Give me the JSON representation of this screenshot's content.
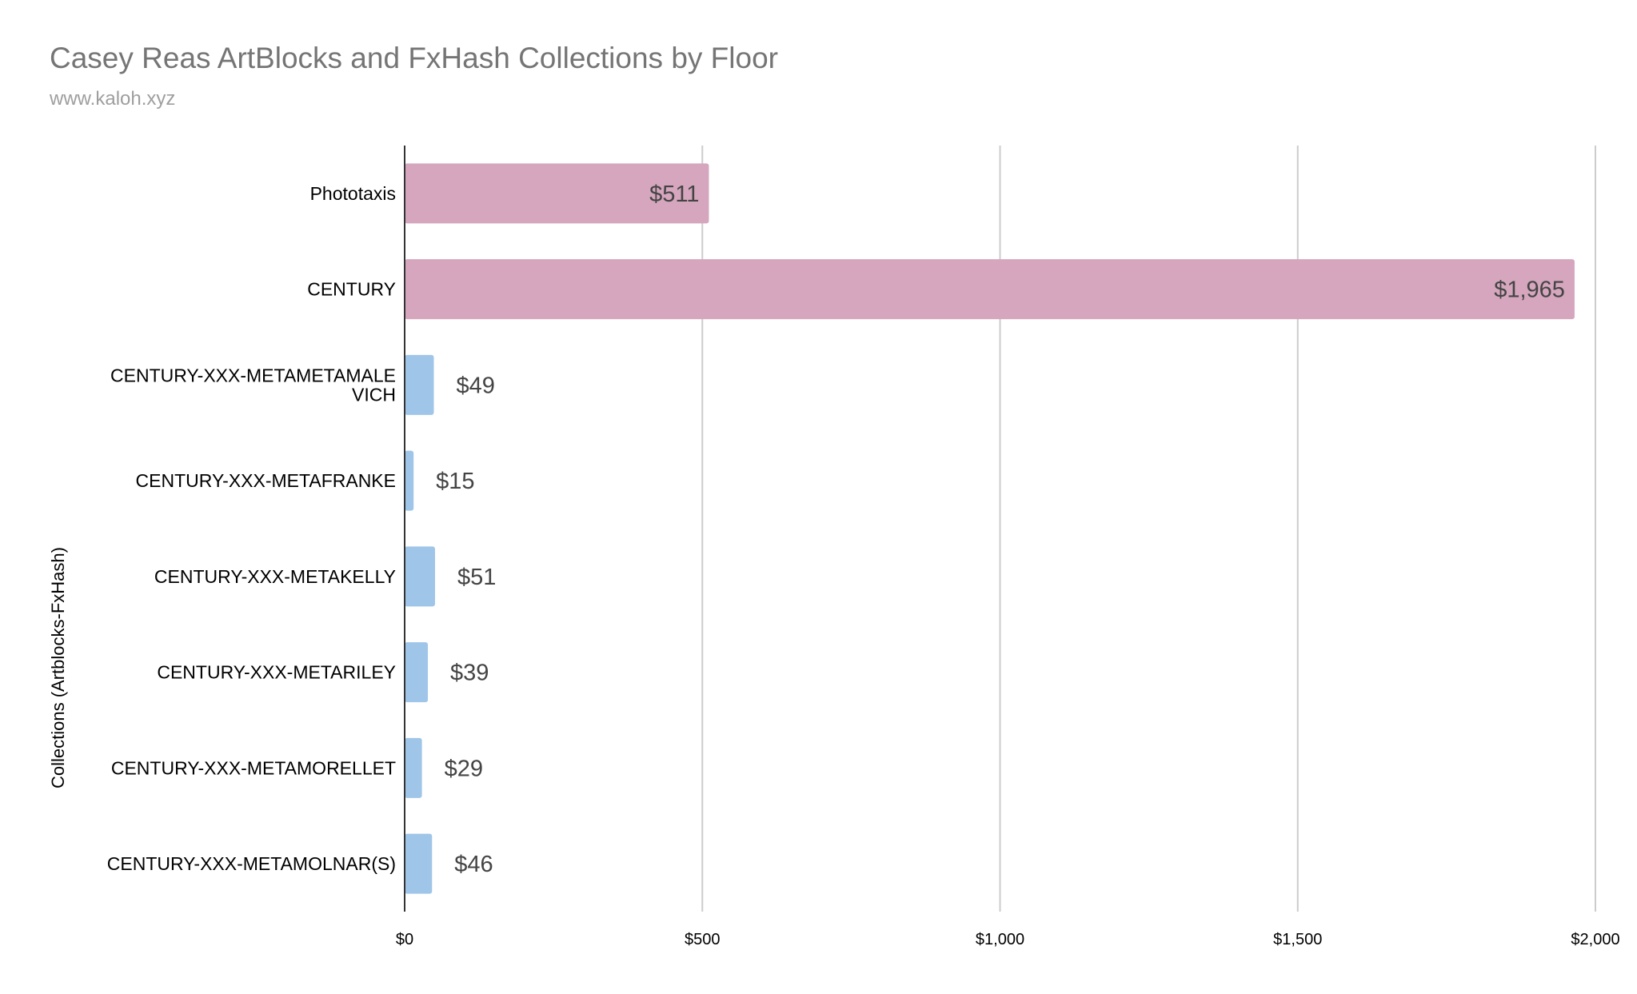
{
  "title": "Casey Reas ArtBlocks and FxHash Collections by Floor",
  "subtitle": "www.kaloh.xyz",
  "colors": {
    "artblocks": "#d5a6bd",
    "fxhash": "#9fc5e8",
    "grid": "#cccccc",
    "axis": "#333333"
  },
  "chart_data": {
    "type": "bar",
    "orientation": "horizontal",
    "title": "Casey Reas ArtBlocks and FxHash Collections by Floor",
    "subtitle": "www.kaloh.xyz",
    "ylabel": "Collections (Artblocks-FxHash)",
    "xlabel": "",
    "xlim": [
      0,
      2000
    ],
    "xticks": [
      0,
      500,
      1000,
      1500,
      2000
    ],
    "xtick_labels": [
      "$0",
      "$500",
      "$1,000",
      "$1,500",
      "$2,000"
    ],
    "grid": true,
    "categories": [
      "Phototaxis",
      "CENTURY",
      "CENTURY-XXX-METAMETAMALEVICH",
      "CENTURY-XXX-METAFRANKE",
      "CENTURY-XXX-METAKELLY",
      "CENTURY-XXX-METARILEY",
      "CENTURY-XXX-METAMORELLET",
      "CENTURY-XXX-METAMOLNAR(S)"
    ],
    "category_display_lines": [
      [
        "Phototaxis"
      ],
      [
        "CENTURY"
      ],
      [
        "CENTURY-XXX-METAMETAMALE",
        "VICH"
      ],
      [
        "CENTURY-XXX-METAFRANKE"
      ],
      [
        "CENTURY-XXX-METAKELLY"
      ],
      [
        "CENTURY-XXX-METARILEY"
      ],
      [
        "CENTURY-XXX-METAMORELLET"
      ],
      [
        "CENTURY-XXX-METAMOLNAR(S)"
      ]
    ],
    "values": [
      511,
      1965,
      49,
      15,
      51,
      39,
      29,
      46
    ],
    "value_labels": [
      "$511",
      "$1,965",
      "$49",
      "$15",
      "$51",
      "$39",
      "$29",
      "$46"
    ],
    "platform": [
      "artblocks",
      "artblocks",
      "fxhash",
      "fxhash",
      "fxhash",
      "fxhash",
      "fxhash",
      "fxhash"
    ]
  }
}
